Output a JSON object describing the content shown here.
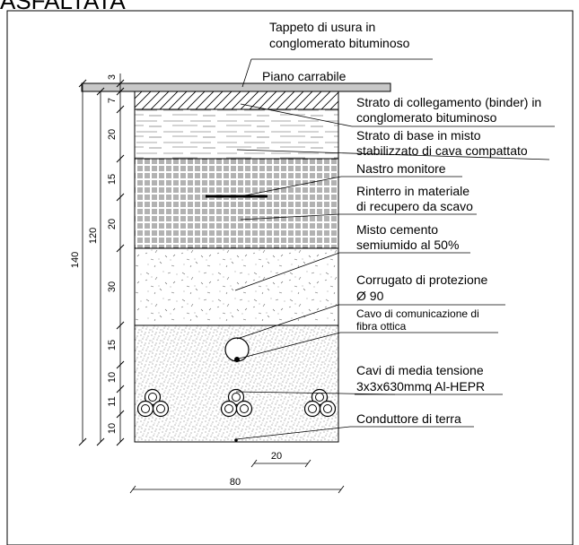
{
  "title": "ASFALTATA",
  "labels": {
    "tappeto": [
      "Tappeto di usura in",
      "conglomerato bituminoso"
    ],
    "piano": "Piano carrabile",
    "binder": [
      "Strato di collegamento (binder) in",
      "conglomerato bituminoso"
    ],
    "base": [
      "Strato di base in misto",
      "stabilizzato di cava compattato"
    ],
    "nastro": "Nastro monitore",
    "rinterro": [
      "Rinterro in materiale",
      "di recupero da scavo"
    ],
    "misto_cemento": [
      "Misto cemento",
      "semiumido al 50%"
    ],
    "corrugato": [
      "Corrugato di protezione",
      "Ø 90"
    ],
    "fibra": [
      "Cavo di comunicazione di",
      "fibra ottica"
    ],
    "cavi_mt": [
      "Cavi di media tensione",
      "3x3x630mmq Al-HEPR"
    ],
    "terra": "Conduttore di terra"
  },
  "dimensions": {
    "layers": [
      "3",
      "7",
      "20",
      "15",
      "20",
      "30",
      "15",
      "10",
      "11",
      "10"
    ],
    "depth_trench": "120",
    "depth_total": "140",
    "spacing": "20",
    "width": "80"
  },
  "colors": {
    "line": "#000000",
    "pavement": "#c8c8c8",
    "background": "#ffffff"
  }
}
